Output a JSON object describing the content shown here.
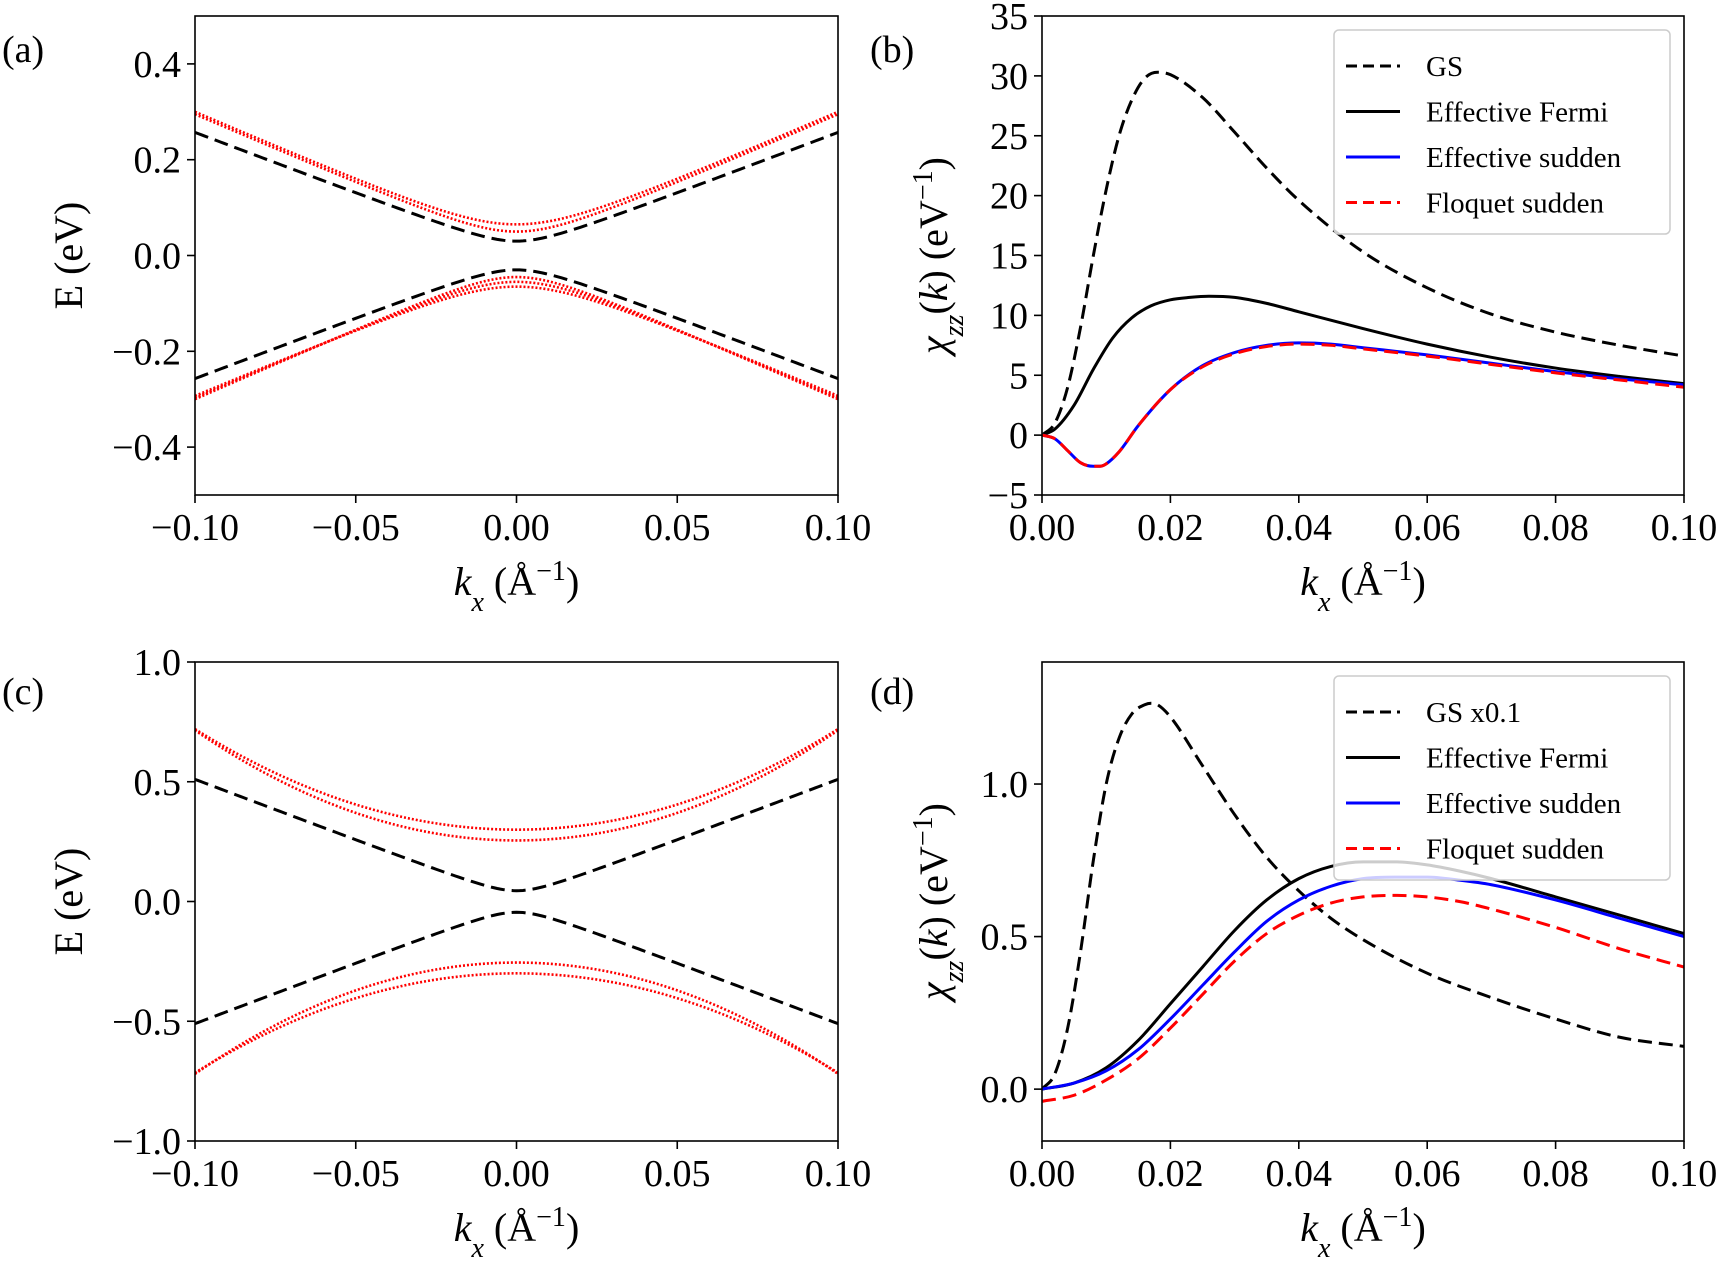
{
  "chart_data": [
    {
      "panel": "(a)",
      "type": "line",
      "xlabel": "k_x (Å^-1)",
      "ylabel": "E (eV)",
      "xlim": [
        -0.1,
        0.1
      ],
      "ylim": [
        -0.5,
        0.5
      ],
      "xticks": [
        "−0.10",
        "−0.05",
        "0.00",
        "0.05",
        "0.10"
      ],
      "yticks": [
        "−0.4",
        "−0.2",
        "0.0",
        "0.2",
        "0.4"
      ],
      "xtick_values": [
        -0.1,
        -0.05,
        0,
        0.05,
        0.1
      ],
      "ytick_values": [
        -0.4,
        -0.2,
        0,
        0.2,
        0.4
      ],
      "curves": [
        {
          "color": "#000000",
          "style": "dashed",
          "kind": "hyperbola",
          "e0": 0.03,
          "k": 0.257,
          "sign": 1
        },
        {
          "color": "#000000",
          "style": "dashed",
          "kind": "hyperbola",
          "e0": 0.03,
          "k": 0.257,
          "sign": -1
        },
        {
          "color": "#ff0000",
          "style": "dotted",
          "kind": "hyperbola",
          "e0": 0.065,
          "k": 0.3,
          "sign": 1
        },
        {
          "color": "#ff0000",
          "style": "dotted",
          "kind": "hyperbola",
          "e0": 0.05,
          "k": 0.295,
          "sign": 1
        },
        {
          "color": "#ff0000",
          "style": "dotted",
          "kind": "hyperbola",
          "e0": 0.045,
          "k": 0.3,
          "sign": -1
        },
        {
          "color": "#ff0000",
          "style": "dotted",
          "kind": "hyperbola",
          "e0": 0.055,
          "k": 0.297,
          "sign": -1
        },
        {
          "color": "#ff0000",
          "style": "dotted",
          "kind": "hyperbola",
          "e0": 0.065,
          "k": 0.293,
          "sign": -1
        }
      ]
    },
    {
      "panel": "(b)",
      "type": "line",
      "xlabel": "k_x (Å^-1)",
      "ylabel": "χ_zz(k) (eV^-1)",
      "xlim": [
        0,
        0.1
      ],
      "ylim": [
        -5,
        35
      ],
      "xticks": [
        "0.00",
        "0.02",
        "0.04",
        "0.06",
        "0.08",
        "0.10"
      ],
      "yticks": [
        "−5",
        "0",
        "5",
        "10",
        "15",
        "20",
        "25",
        "30",
        "35"
      ],
      "xtick_values": [
        0,
        0.02,
        0.04,
        0.06,
        0.08,
        0.1
      ],
      "ytick_values": [
        -5,
        0,
        5,
        10,
        15,
        20,
        25,
        30,
        35
      ],
      "legend": [
        "GS",
        "Effective Fermi",
        "Effective sudden",
        "Floquet sudden"
      ],
      "legend_position": "upper-right",
      "series": [
        {
          "name": "GS",
          "color": "#000000",
          "style": "dashed",
          "x": [
            0,
            0.002,
            0.004,
            0.006,
            0.008,
            0.01,
            0.012,
            0.014,
            0.016,
            0.018,
            0.02,
            0.025,
            0.03,
            0.035,
            0.04,
            0.05,
            0.06,
            0.07,
            0.08,
            0.09,
            0.1
          ],
          "y": [
            0,
            1,
            4,
            9,
            15,
            20.5,
            25,
            28,
            29.8,
            30.3,
            30.1,
            28.2,
            25.3,
            22.3,
            19.6,
            15.3,
            12.3,
            10.1,
            8.6,
            7.5,
            6.6
          ]
        },
        {
          "name": "Effective Fermi",
          "color": "#000000",
          "style": "solid",
          "x": [
            0,
            0.002,
            0.005,
            0.008,
            0.011,
            0.014,
            0.017,
            0.02,
            0.023,
            0.026,
            0.03,
            0.035,
            0.04,
            0.05,
            0.06,
            0.07,
            0.08,
            0.09,
            0.1
          ],
          "y": [
            0,
            0.5,
            2.5,
            5.5,
            8.1,
            9.8,
            10.8,
            11.3,
            11.5,
            11.6,
            11.5,
            11.0,
            10.3,
            8.9,
            7.6,
            6.5,
            5.6,
            4.9,
            4.3
          ]
        },
        {
          "name": "Effective sudden",
          "color": "#0000ff",
          "style": "solid",
          "x": [
            0,
            0.002,
            0.004,
            0.006,
            0.008,
            0.009,
            0.01,
            0.012,
            0.015,
            0.02,
            0.025,
            0.03,
            0.035,
            0.04,
            0.045,
            0.05,
            0.06,
            0.07,
            0.08,
            0.09,
            0.1
          ],
          "y": [
            0,
            -0.3,
            -1.3,
            -2.3,
            -2.6,
            -2.6,
            -2.4,
            -1.4,
            0.8,
            3.8,
            5.8,
            6.9,
            7.5,
            7.7,
            7.6,
            7.3,
            6.7,
            6.0,
            5.3,
            4.7,
            4.2
          ]
        },
        {
          "name": "Floquet sudden",
          "color": "#ff0000",
          "style": "dashed",
          "x": [
            0,
            0.002,
            0.004,
            0.006,
            0.008,
            0.009,
            0.01,
            0.012,
            0.015,
            0.02,
            0.025,
            0.03,
            0.035,
            0.04,
            0.045,
            0.05,
            0.06,
            0.07,
            0.08,
            0.09,
            0.1
          ],
          "y": [
            0,
            -0.3,
            -1.3,
            -2.3,
            -2.6,
            -2.6,
            -2.4,
            -1.4,
            0.8,
            3.8,
            5.7,
            6.8,
            7.4,
            7.6,
            7.5,
            7.2,
            6.6,
            5.9,
            5.2,
            4.6,
            4.0
          ]
        }
      ]
    },
    {
      "panel": "(c)",
      "type": "line",
      "xlabel": "k_x (Å^-1)",
      "ylabel": "E (eV)",
      "xlim": [
        -0.1,
        0.1
      ],
      "ylim": [
        -1.0,
        1.0
      ],
      "xticks": [
        "−0.10",
        "−0.05",
        "0.00",
        "0.05",
        "0.10"
      ],
      "yticks": [
        "−1.0",
        "−0.5",
        "0.0",
        "0.5",
        "1.0"
      ],
      "xtick_values": [
        -0.1,
        -0.05,
        0,
        0.05,
        0.1
      ],
      "ytick_values": [
        -1.0,
        -0.5,
        0,
        0.5,
        1.0
      ],
      "curves": [
        {
          "color": "#000000",
          "style": "dashed",
          "kind": "hyperbola",
          "e0": 0.045,
          "k": 0.51,
          "sign": 1
        },
        {
          "color": "#000000",
          "style": "dashed",
          "kind": "hyperbola",
          "e0": 0.045,
          "k": 0.51,
          "sign": -1
        },
        {
          "color": "#ff0000",
          "style": "dotted",
          "kind": "parabola",
          "e0": 0.3,
          "k": 0.72,
          "sign": 1
        },
        {
          "color": "#ff0000",
          "style": "dotted",
          "kind": "parabola",
          "e0": 0.255,
          "k": 0.715,
          "sign": 1
        },
        {
          "color": "#ff0000",
          "style": "dotted",
          "kind": "parabola",
          "e0": 0.255,
          "k": 0.72,
          "sign": -1
        },
        {
          "color": "#ff0000",
          "style": "dotted",
          "kind": "parabola",
          "e0": 0.3,
          "k": 0.715,
          "sign": -1
        }
      ]
    },
    {
      "panel": "(d)",
      "type": "line",
      "xlabel": "k_x (Å^-1)",
      "ylabel": "χ_zz(k) (eV^-1)",
      "xlim": [
        0,
        0.1
      ],
      "ylim": [
        -0.17,
        1.4
      ],
      "xticks": [
        "0.00",
        "0.02",
        "0.04",
        "0.06",
        "0.08",
        "0.10"
      ],
      "yticks": [
        "0.0",
        "0.5",
        "1.0"
      ],
      "xtick_values": [
        0,
        0.02,
        0.04,
        0.06,
        0.08,
        0.1
      ],
      "ytick_values": [
        0,
        0.5,
        1.0
      ],
      "legend": [
        "GS x0.1",
        "Effective Fermi",
        "Effective sudden",
        "Floquet sudden"
      ],
      "legend_position": "upper-right",
      "series": [
        {
          "name": "GS x0.1",
          "color": "#000000",
          "style": "dashed",
          "x": [
            0,
            0.002,
            0.004,
            0.006,
            0.008,
            0.01,
            0.012,
            0.014,
            0.016,
            0.017,
            0.018,
            0.02,
            0.025,
            0.03,
            0.035,
            0.04,
            0.045,
            0.05,
            0.06,
            0.07,
            0.08,
            0.09,
            0.1
          ],
          "y": [
            0,
            0.05,
            0.2,
            0.45,
            0.75,
            1.0,
            1.15,
            1.23,
            1.26,
            1.265,
            1.26,
            1.22,
            1.06,
            0.9,
            0.76,
            0.65,
            0.56,
            0.49,
            0.38,
            0.3,
            0.23,
            0.17,
            0.14
          ]
        },
        {
          "name": "Effective Fermi",
          "color": "#000000",
          "style": "solid",
          "x": [
            0,
            0.005,
            0.01,
            0.015,
            0.02,
            0.025,
            0.03,
            0.035,
            0.04,
            0.045,
            0.05,
            0.055,
            0.06,
            0.065,
            0.07,
            0.08,
            0.09,
            0.1
          ],
          "y": [
            0,
            0.02,
            0.07,
            0.16,
            0.28,
            0.4,
            0.52,
            0.62,
            0.69,
            0.73,
            0.745,
            0.745,
            0.735,
            0.715,
            0.69,
            0.63,
            0.57,
            0.51
          ]
        },
        {
          "name": "Effective sudden",
          "color": "#0000ff",
          "style": "solid",
          "x": [
            0,
            0.005,
            0.01,
            0.015,
            0.02,
            0.025,
            0.03,
            0.035,
            0.04,
            0.045,
            0.05,
            0.055,
            0.06,
            0.065,
            0.07,
            0.08,
            0.09,
            0.1
          ],
          "y": [
            0,
            0.02,
            0.06,
            0.13,
            0.23,
            0.34,
            0.45,
            0.55,
            0.62,
            0.665,
            0.69,
            0.695,
            0.695,
            0.685,
            0.67,
            0.62,
            0.56,
            0.5
          ]
        },
        {
          "name": "Floquet sudden",
          "color": "#ff0000",
          "style": "dashed",
          "x": [
            0,
            0.005,
            0.01,
            0.015,
            0.02,
            0.025,
            0.03,
            0.035,
            0.04,
            0.045,
            0.05,
            0.055,
            0.06,
            0.065,
            0.07,
            0.08,
            0.09,
            0.1
          ],
          "y": [
            -0.04,
            -0.02,
            0.03,
            0.1,
            0.2,
            0.31,
            0.42,
            0.51,
            0.57,
            0.61,
            0.63,
            0.635,
            0.63,
            0.615,
            0.59,
            0.53,
            0.46,
            0.4
          ]
        }
      ]
    }
  ]
}
